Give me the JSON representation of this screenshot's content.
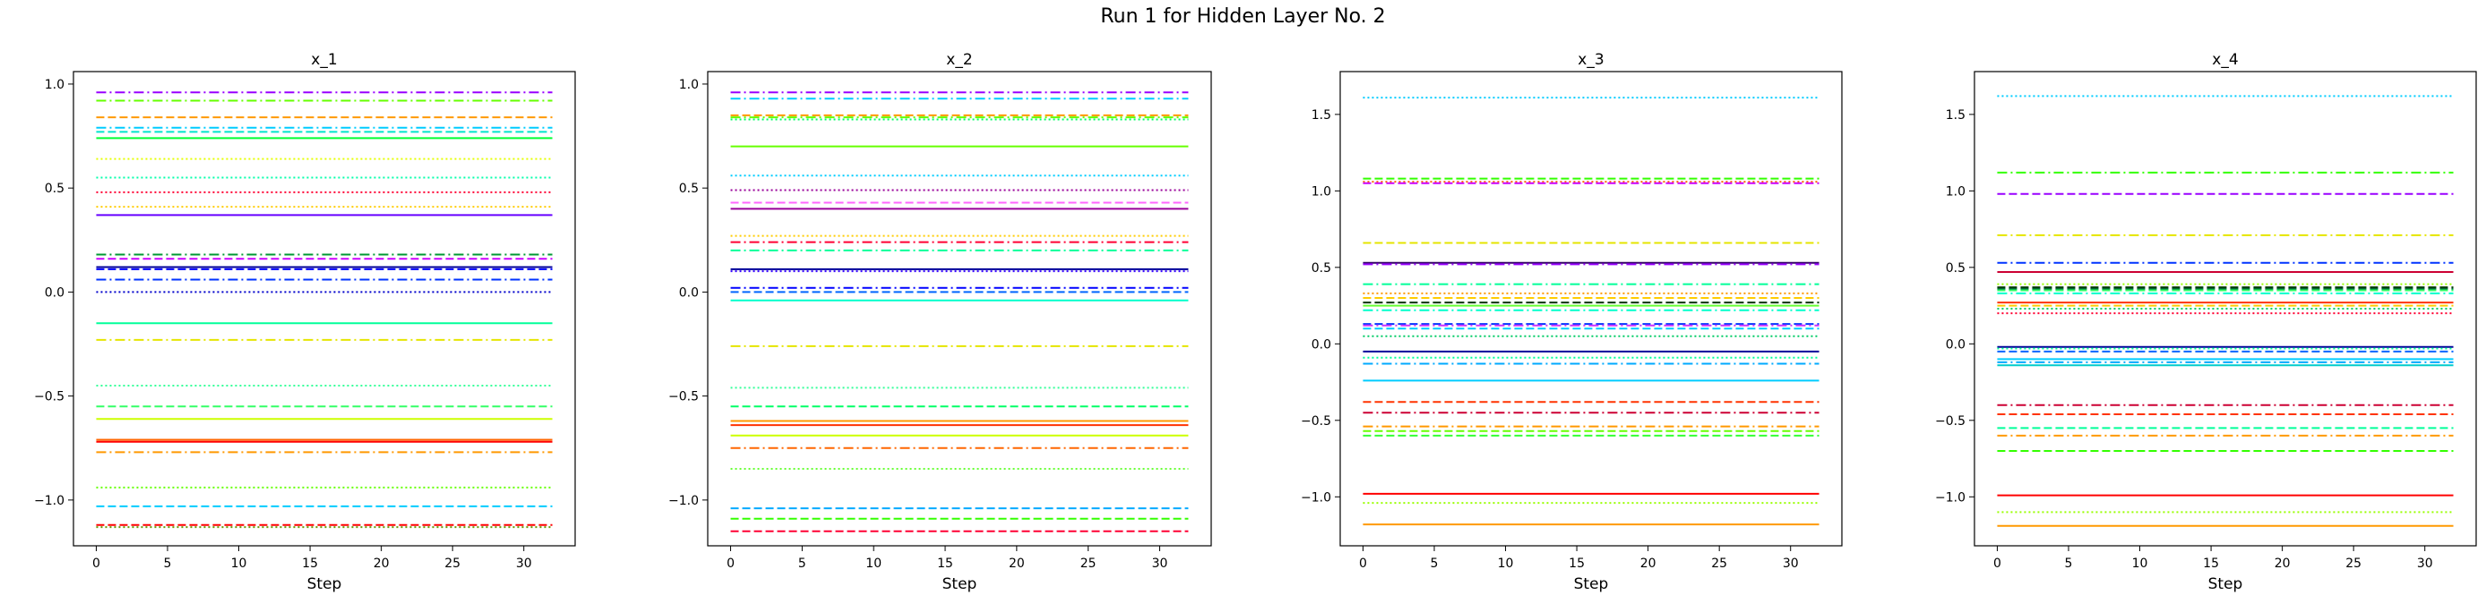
{
  "figure": {
    "suptitle": "Run 1 for Hidden Layer No. 2"
  },
  "chart_data": [
    {
      "type": "line",
      "title": "x_1",
      "xlabel": "Step",
      "ylabel": "",
      "xlim": [
        -1.6,
        33.6
      ],
      "ylim": [
        -1.22,
        1.06
      ],
      "xticks": [
        0,
        5,
        10,
        15,
        20,
        25,
        30
      ],
      "yticks": [
        -1.0,
        -0.5,
        0.0,
        0.5,
        1.0
      ],
      "x_range": [
        0,
        32
      ],
      "series": [
        {
          "value": 0.96,
          "color": "#9900ff",
          "style": "dashdot"
        },
        {
          "value": 0.92,
          "color": "#66ff00",
          "style": "dashdot"
        },
        {
          "value": 0.84,
          "color": "#ff9900",
          "style": "dashed"
        },
        {
          "value": 0.79,
          "color": "#00ccff",
          "style": "dashdot"
        },
        {
          "value": 0.77,
          "color": "#00e5cc",
          "style": "dashed"
        },
        {
          "value": 0.74,
          "color": "#00ff33",
          "style": "solid"
        },
        {
          "value": 0.64,
          "color": "#e5ff00",
          "style": "dotted"
        },
        {
          "value": 0.55,
          "color": "#00ffaa",
          "style": "dotted"
        },
        {
          "value": 0.48,
          "color": "#ff0033",
          "style": "dotted"
        },
        {
          "value": 0.41,
          "color": "#ffcc00",
          "style": "dotted"
        },
        {
          "value": 0.37,
          "color": "#6600ff",
          "style": "solid"
        },
        {
          "value": 0.18,
          "color": "#009933",
          "style": "dashdot"
        },
        {
          "value": 0.16,
          "color": "#cc00ff",
          "style": "dashed"
        },
        {
          "value": 0.12,
          "color": "#000099",
          "style": "solid"
        },
        {
          "value": 0.11,
          "color": "#0000ff",
          "style": "dashed"
        },
        {
          "value": 0.06,
          "color": "#0033ff",
          "style": "dashdot"
        },
        {
          "value": 0.0,
          "color": "#0000cc",
          "style": "dotted"
        },
        {
          "value": -0.15,
          "color": "#00ff99",
          "style": "solid"
        },
        {
          "value": -0.23,
          "color": "#e5e500",
          "style": "dashdot"
        },
        {
          "value": -0.45,
          "color": "#33ff99",
          "style": "dotted"
        },
        {
          "value": -0.55,
          "color": "#33ff66",
          "style": "dashed"
        },
        {
          "value": -0.61,
          "color": "#ccff00",
          "style": "solid"
        },
        {
          "value": -0.71,
          "color": "#ff6600",
          "style": "solid"
        },
        {
          "value": -0.72,
          "color": "#ff0000",
          "style": "solid"
        },
        {
          "value": -0.77,
          "color": "#ff9900",
          "style": "dashdot"
        },
        {
          "value": -0.94,
          "color": "#66ff00",
          "style": "dotted"
        },
        {
          "value": -1.03,
          "color": "#00ccff",
          "style": "dashed"
        },
        {
          "value": -1.12,
          "color": "#ff0000",
          "style": "dashed"
        },
        {
          "value": -1.13,
          "color": "#669900",
          "style": "dotted"
        }
      ]
    },
    {
      "type": "line",
      "title": "x_2",
      "xlabel": "Step",
      "ylabel": "",
      "xlim": [
        -1.6,
        33.6
      ],
      "ylim": [
        -1.22,
        1.06
      ],
      "xticks": [
        0,
        5,
        10,
        15,
        20,
        25,
        30
      ],
      "yticks": [
        -1.0,
        -0.5,
        0.0,
        0.5,
        1.0
      ],
      "x_range": [
        0,
        32
      ],
      "series": [
        {
          "value": 0.96,
          "color": "#9900ff",
          "style": "dashdot"
        },
        {
          "value": 0.93,
          "color": "#00ccff",
          "style": "dashdot"
        },
        {
          "value": 0.85,
          "color": "#ff9900",
          "style": "dashed"
        },
        {
          "value": 0.84,
          "color": "#66ff00",
          "style": "dashdot"
        },
        {
          "value": 0.83,
          "color": "#00ff66",
          "style": "dotted"
        },
        {
          "value": 0.7,
          "color": "#66ff00",
          "style": "solid"
        },
        {
          "value": 0.56,
          "color": "#00ccff",
          "style": "dotted"
        },
        {
          "value": 0.49,
          "color": "#990099",
          "style": "dotted"
        },
        {
          "value": 0.43,
          "color": "#ff66ff",
          "style": "dashed"
        },
        {
          "value": 0.4,
          "color": "#990099",
          "style": "solid"
        },
        {
          "value": 0.27,
          "color": "#ffcc00",
          "style": "dotted"
        },
        {
          "value": 0.24,
          "color": "#ff0033",
          "style": "dashdot"
        },
        {
          "value": 0.2,
          "color": "#00ff99",
          "style": "dashdot"
        },
        {
          "value": 0.11,
          "color": "#000099",
          "style": "solid"
        },
        {
          "value": 0.1,
          "color": "#3300ff",
          "style": "dotted"
        },
        {
          "value": 0.02,
          "color": "#0000ff",
          "style": "dashdot"
        },
        {
          "value": 0.0,
          "color": "#0066ff",
          "style": "dashed"
        },
        {
          "value": -0.04,
          "color": "#00ffcc",
          "style": "solid"
        },
        {
          "value": -0.26,
          "color": "#e5e500",
          "style": "dashdot"
        },
        {
          "value": -0.46,
          "color": "#33ff99",
          "style": "dotted"
        },
        {
          "value": -0.55,
          "color": "#00ff66",
          "style": "dashed"
        },
        {
          "value": -0.62,
          "color": "#ff9900",
          "style": "solid"
        },
        {
          "value": -0.64,
          "color": "#ff3300",
          "style": "solid"
        },
        {
          "value": -0.69,
          "color": "#ccff00",
          "style": "solid"
        },
        {
          "value": -0.75,
          "color": "#ff6600",
          "style": "dashdot"
        },
        {
          "value": -0.85,
          "color": "#66ff33",
          "style": "dotted"
        },
        {
          "value": -1.04,
          "color": "#00aaff",
          "style": "dashed"
        },
        {
          "value": -1.09,
          "color": "#33ff00",
          "style": "dashed"
        },
        {
          "value": -1.15,
          "color": "#ff0033",
          "style": "dashed"
        }
      ]
    },
    {
      "type": "line",
      "title": "x_3",
      "xlabel": "Step",
      "ylabel": "",
      "xlim": [
        -1.6,
        33.6
      ],
      "ylim": [
        -1.32,
        1.78
      ],
      "xticks": [
        0,
        5,
        10,
        15,
        20,
        25,
        30
      ],
      "yticks": [
        -1.0,
        -0.5,
        0.0,
        0.5,
        1.0,
        1.5
      ],
      "x_range": [
        0,
        32
      ],
      "series": [
        {
          "value": 1.61,
          "color": "#00ccff",
          "style": "dotted"
        },
        {
          "value": 1.08,
          "color": "#33ff00",
          "style": "dashed"
        },
        {
          "value": 1.06,
          "color": "#ff6600",
          "style": "dotted"
        },
        {
          "value": 1.05,
          "color": "#cc00ff",
          "style": "dashed"
        },
        {
          "value": 0.66,
          "color": "#e5e500",
          "style": "dashed"
        },
        {
          "value": 0.53,
          "color": "#330066",
          "style": "solid"
        },
        {
          "value": 0.52,
          "color": "#9900ff",
          "style": "dashdot"
        },
        {
          "value": 0.39,
          "color": "#00ff99",
          "style": "dashdot"
        },
        {
          "value": 0.33,
          "color": "#ff9900",
          "style": "dotted"
        },
        {
          "value": 0.3,
          "color": "#ffcc00",
          "style": "dashed"
        },
        {
          "value": 0.27,
          "color": "#003300",
          "style": "dashed"
        },
        {
          "value": 0.25,
          "color": "#66ff33",
          "style": "solid"
        },
        {
          "value": 0.22,
          "color": "#00ffcc",
          "style": "dashdot"
        },
        {
          "value": 0.13,
          "color": "#0033ff",
          "style": "dashed"
        },
        {
          "value": 0.12,
          "color": "#cc33ff",
          "style": "dashdot"
        },
        {
          "value": 0.1,
          "color": "#00ccff",
          "style": "dashed"
        },
        {
          "value": 0.05,
          "color": "#00cc66",
          "style": "dotted"
        },
        {
          "value": -0.05,
          "color": "#000099",
          "style": "solid"
        },
        {
          "value": -0.09,
          "color": "#00ff99",
          "style": "dotted"
        },
        {
          "value": -0.13,
          "color": "#00aaff",
          "style": "dashdot"
        },
        {
          "value": -0.24,
          "color": "#00ccff",
          "style": "solid"
        },
        {
          "value": -0.38,
          "color": "#ff3300",
          "style": "dashed"
        },
        {
          "value": -0.45,
          "color": "#cc0033",
          "style": "dashdot"
        },
        {
          "value": -0.54,
          "color": "#ff9900",
          "style": "dashdot"
        },
        {
          "value": -0.57,
          "color": "#66ff00",
          "style": "dashed"
        },
        {
          "value": -0.6,
          "color": "#33ff33",
          "style": "dashed"
        },
        {
          "value": -0.98,
          "color": "#ff0000",
          "style": "solid"
        },
        {
          "value": -1.04,
          "color": "#99ff00",
          "style": "dotted"
        },
        {
          "value": -1.18,
          "color": "#ff9900",
          "style": "solid"
        }
      ]
    },
    {
      "type": "line",
      "title": "x_4",
      "xlabel": "Step",
      "ylabel": "",
      "xlim": [
        -1.6,
        33.6
      ],
      "ylim": [
        -1.32,
        1.78
      ],
      "xticks": [
        0,
        5,
        10,
        15,
        20,
        25,
        30
      ],
      "yticks": [
        -1.0,
        -0.5,
        0.0,
        0.5,
        1.0,
        1.5
      ],
      "x_range": [
        0,
        32
      ],
      "series": [
        {
          "value": 1.62,
          "color": "#00ccff",
          "style": "dotted"
        },
        {
          "value": 1.12,
          "color": "#33ff00",
          "style": "dashdot"
        },
        {
          "value": 0.98,
          "color": "#9900ff",
          "style": "dashed"
        },
        {
          "value": 0.71,
          "color": "#e5e500",
          "style": "dashdot"
        },
        {
          "value": 0.53,
          "color": "#0033ff",
          "style": "dashdot"
        },
        {
          "value": 0.47,
          "color": "#cc0033",
          "style": "solid"
        },
        {
          "value": 0.39,
          "color": "#99ff00",
          "style": "dotted"
        },
        {
          "value": 0.37,
          "color": "#003300",
          "style": "dashed"
        },
        {
          "value": 0.36,
          "color": "#006633",
          "style": "dashed"
        },
        {
          "value": 0.35,
          "color": "#33ff66",
          "style": "dashed"
        },
        {
          "value": 0.33,
          "color": "#00ffcc",
          "style": "dashdot"
        },
        {
          "value": 0.27,
          "color": "#ff3300",
          "style": "solid"
        },
        {
          "value": 0.25,
          "color": "#ffcc00",
          "style": "dashed"
        },
        {
          "value": 0.23,
          "color": "#00cc66",
          "style": "dotted"
        },
        {
          "value": 0.2,
          "color": "#ff0033",
          "style": "dotted"
        },
        {
          "value": -0.02,
          "color": "#000099",
          "style": "solid"
        },
        {
          "value": -0.03,
          "color": "#00ff99",
          "style": "dotted"
        },
        {
          "value": -0.05,
          "color": "#0066ff",
          "style": "dashed"
        },
        {
          "value": -0.1,
          "color": "#00ccff",
          "style": "solid"
        },
        {
          "value": -0.12,
          "color": "#00aaff",
          "style": "dashdot"
        },
        {
          "value": -0.14,
          "color": "#00cccc",
          "style": "solid"
        },
        {
          "value": -0.4,
          "color": "#cc0033",
          "style": "dashdot"
        },
        {
          "value": -0.46,
          "color": "#ff3300",
          "style": "dashed"
        },
        {
          "value": -0.55,
          "color": "#00ff99",
          "style": "dashed"
        },
        {
          "value": -0.6,
          "color": "#ff9900",
          "style": "dashdot"
        },
        {
          "value": -0.7,
          "color": "#33ff00",
          "style": "dashed"
        },
        {
          "value": -0.99,
          "color": "#ff0000",
          "style": "solid"
        },
        {
          "value": -1.1,
          "color": "#99ff00",
          "style": "dotted"
        },
        {
          "value": -1.19,
          "color": "#ff9900",
          "style": "solid"
        }
      ]
    }
  ]
}
